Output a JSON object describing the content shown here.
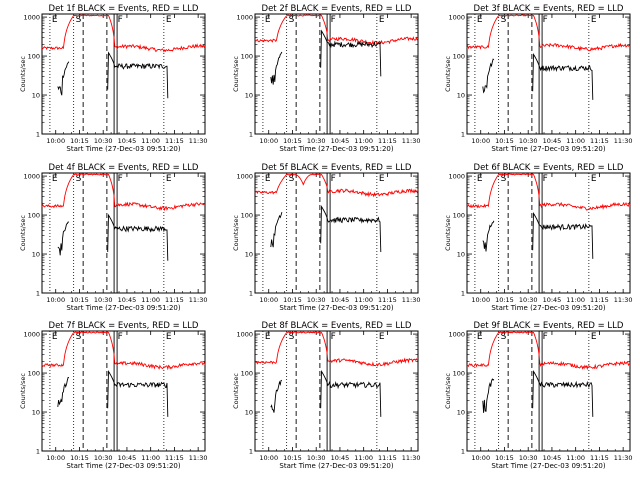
{
  "figure": {
    "panels": [
      {
        "title": "Det 1f BLACK = Events, RED = LLD"
      },
      {
        "title": "Det 2f BLACK = Events, RED = LLD"
      },
      {
        "title": "Det 3f BLACK = Events, RED = LLD"
      },
      {
        "title": "Det 4f BLACK = Events, RED = LLD"
      },
      {
        "title": "Det 5f BLACK = Events, RED = LLD"
      },
      {
        "title": "Det 6f BLACK = Events, RED = LLD"
      },
      {
        "title": "Det 7f BLACK = Events, RED = LLD"
      },
      {
        "title": "Det 8f BLACK = Events, RED = LLD"
      },
      {
        "title": "Det 9f BLACK = Events, RED = LLD"
      }
    ]
  },
  "chart_data": {
    "type": "line",
    "scale_y": "log",
    "x_label": "Start Time (27-Dec-03 09:51:20)",
    "y_label": "Counts/sec",
    "x_ticks": [
      "10:00",
      "10:15",
      "10:30",
      "10:45",
      "11:00",
      "11:15",
      "11:30"
    ],
    "x_tick_minutes": [
      8.67,
      23.67,
      38.67,
      53.67,
      68.67,
      83.67,
      98.67
    ],
    "x_range_minutes": [
      0,
      103
    ],
    "y_ticks": [
      "1",
      "10",
      "100",
      "1000"
    ],
    "y_range": [
      1,
      1200
    ],
    "markers": [
      {
        "label": "E",
        "minute": 5,
        "style": "dotted"
      },
      {
        "label": "S",
        "minute": 20,
        "style": "dotted"
      },
      {
        "label": "",
        "minute": 26,
        "style": "dashed"
      },
      {
        "label": "",
        "minute": 41,
        "style": "dashed"
      },
      {
        "label": "F",
        "minute": 46.5,
        "style": "solid-double"
      },
      {
        "label": "E",
        "minute": 77,
        "style": "dotted"
      }
    ],
    "series_legend": {
      "events_color": "#000000",
      "lld_color": "#ff0000"
    },
    "panels": [
      {
        "detector": "1f",
        "lld_base": 160,
        "lld_high": 1100,
        "events_pre": 70,
        "events_post": 55,
        "events_end": 80
      },
      {
        "detector": "2f",
        "lld_base": 250,
        "lld_high": 1100,
        "events_pre": 120,
        "events_post": 200,
        "events_end": 88
      },
      {
        "detector": "3f",
        "lld_base": 170,
        "lld_high": 1100,
        "events_pre": 80,
        "events_post": 50,
        "events_end": 80
      },
      {
        "detector": "4f",
        "lld_base": 170,
        "lld_high": 1100,
        "events_pre": 70,
        "events_post": 45,
        "events_end": 80
      },
      {
        "detector": "5f",
        "lld_base": 380,
        "lld_high": 1100,
        "events_pre": 120,
        "events_post": 75,
        "events_end": 86
      },
      {
        "detector": "6f",
        "lld_base": 170,
        "lld_high": 1100,
        "events_pre": 80,
        "events_post": 50,
        "events_end": 80
      },
      {
        "detector": "7f",
        "lld_base": 160,
        "lld_high": 1100,
        "events_pre": 75,
        "events_post": 50,
        "events_end": 80
      },
      {
        "detector": "8f",
        "lld_base": 190,
        "lld_high": 1100,
        "events_pre": 70,
        "events_post": 50,
        "events_end": 80
      },
      {
        "detector": "9f",
        "lld_base": 160,
        "lld_high": 1100,
        "events_pre": 75,
        "events_post": 50,
        "events_end": 80
      }
    ]
  }
}
